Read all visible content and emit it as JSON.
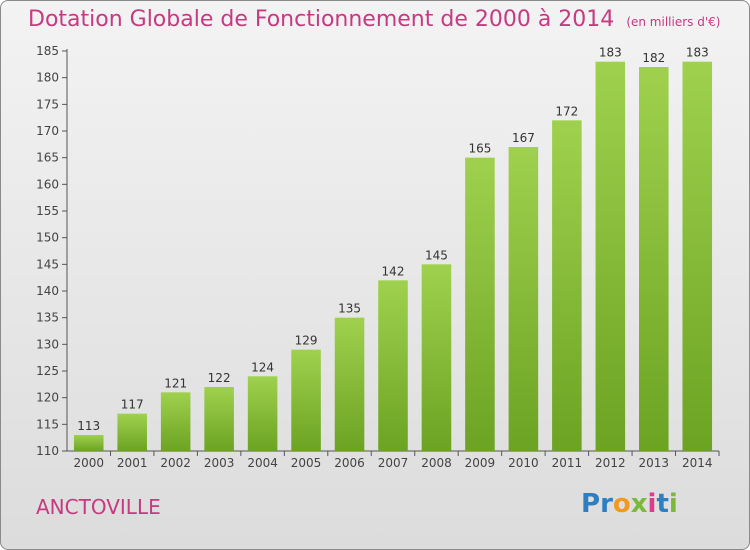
{
  "chart_data": {
    "type": "bar",
    "title": "Dotation Globale de Fonctionnement de 2000 à 2014",
    "subtitle": "(en milliers d'€)",
    "categories": [
      "2000",
      "2001",
      "2002",
      "2003",
      "2004",
      "2005",
      "2006",
      "2007",
      "2008",
      "2009",
      "2010",
      "2011",
      "2012",
      "2013",
      "2014"
    ],
    "values": [
      113,
      117,
      121,
      122,
      124,
      129,
      135,
      142,
      145,
      165,
      167,
      172,
      183,
      182,
      183
    ],
    "ylim": [
      110,
      185
    ],
    "yticks": [
      110,
      115,
      120,
      125,
      130,
      135,
      140,
      145,
      150,
      155,
      160,
      165,
      170,
      175,
      180,
      185
    ],
    "grid": false,
    "colors": {
      "bar_light": "#9fd14e",
      "bar_dark": "#6ca322",
      "title": "#c53a80"
    }
  },
  "footer": {
    "commune": "ANCTOVILLE",
    "logo": [
      "P",
      "r",
      "o",
      "x",
      "i",
      "t",
      "i"
    ],
    "logo_colors": [
      "#2e7fc1",
      "#2e7fc1",
      "#f29a1f",
      "#7ab93a",
      "#e03a8c",
      "#2e7fc1",
      "#7ab93a"
    ]
  }
}
